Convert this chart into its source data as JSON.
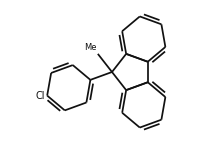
{
  "bg": "#ffffff",
  "lc": "#111111",
  "lw": 1.25,
  "dbl_off": 0.033,
  "dbl_shrink": 0.14,
  "figsize": [
    2.04,
    1.44
  ],
  "dpi": 100,
  "xlim": [
    0,
    2.04
  ],
  "ylim": [
    0,
    1.44
  ],
  "BL": 0.23,
  "c9x": 1.12,
  "c9y": 0.72,
  "ang_up_deg": 52,
  "ang_dn_deg": -52,
  "ang_ph_deg": 200,
  "ang_me_deg": 128,
  "cl_fontsize": 7.0,
  "me_fontsize": 6.0,
  "cl_label": "Cl",
  "me_label": "Me"
}
